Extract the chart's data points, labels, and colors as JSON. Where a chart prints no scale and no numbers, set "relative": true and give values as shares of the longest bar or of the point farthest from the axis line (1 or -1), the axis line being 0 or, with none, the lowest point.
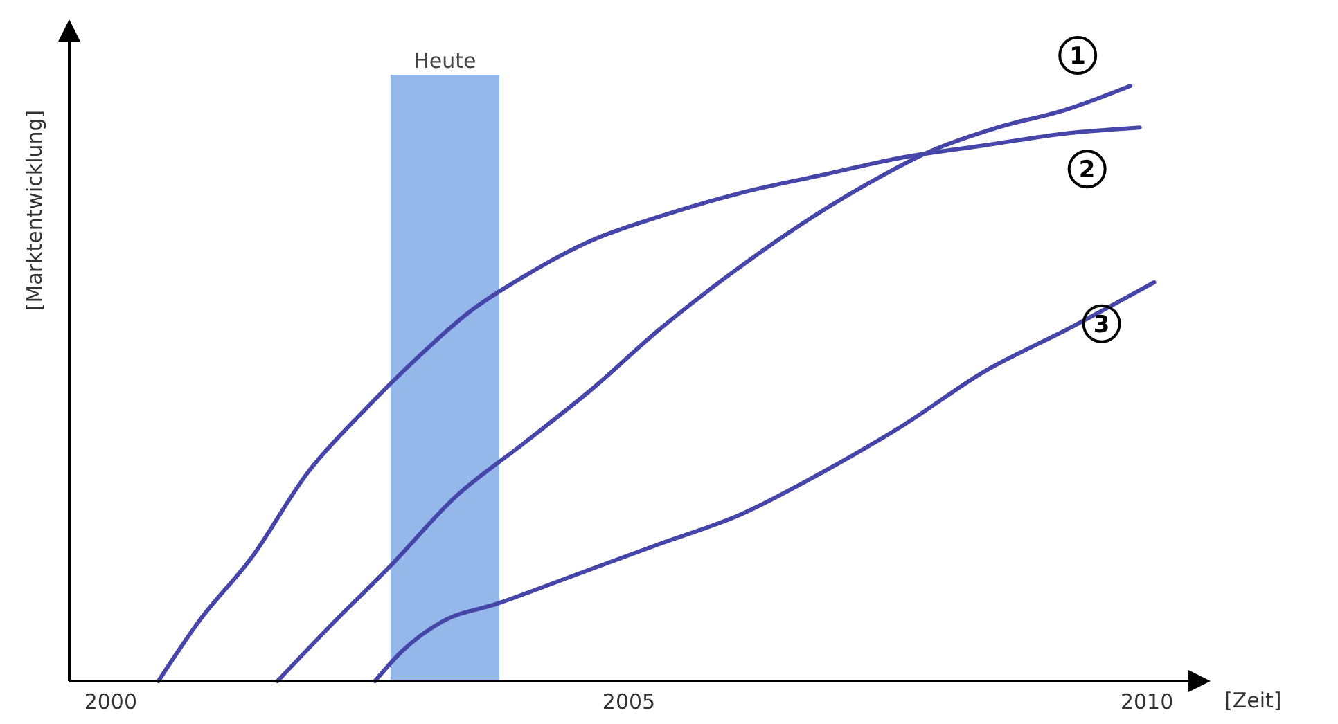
{
  "chart_data": {
    "type": "line",
    "relative": true,
    "xlabel": "[Zeit]",
    "ylabel": "[Marktentwicklung]",
    "xlim": [
      1999.6,
      2010.4
    ],
    "xticks": [
      2000,
      2005,
      2010
    ],
    "grid": false,
    "line_style": "solid",
    "bands": [
      {
        "axis": "x",
        "from": 2002.7,
        "to": 2003.75,
        "label": "Heute",
        "color": "#94b8ea"
      }
    ],
    "series": [
      {
        "name": "1",
        "color": "#4646a8",
        "x": [
          2001.61,
          2002.16,
          2002.68,
          2003.33,
          2003.99,
          2004.64,
          2005.29,
          2005.95,
          2006.6,
          2007.25,
          2007.91,
          2008.56,
          2009.22,
          2009.84
        ],
        "values": [
          0,
          0.1,
          0.19,
          0.31,
          0.4,
          0.49,
          0.59,
          0.68,
          0.76,
          0.83,
          0.89,
          0.93,
          0.96,
          1
        ]
      },
      {
        "name": "2",
        "color": "#4646a8",
        "x": [
          2000.46,
          2000.85,
          2001.37,
          2001.9,
          2002.42,
          2002.94,
          2003.46,
          2003.99,
          2004.64,
          2005.29,
          2006.08,
          2006.86,
          2007.65,
          2008.43,
          2009.22,
          2009.93
        ],
        "values": [
          0,
          0.1,
          0.21,
          0.35,
          0.45,
          0.54,
          0.62,
          0.68,
          0.74,
          0.78,
          0.82,
          0.85,
          0.88,
          0.9,
          0.92,
          0.93
        ]
      },
      {
        "name": "3",
        "color": "#4646a8",
        "x": [
          2002.55,
          2002.81,
          2003.2,
          2003.73,
          2004.51,
          2005.29,
          2006.08,
          2006.86,
          2007.65,
          2008.43,
          2009.22,
          2010.07
        ],
        "values": [
          0,
          0.05,
          0.1,
          0.13,
          0.18,
          0.23,
          0.28,
          0.35,
          0.43,
          0.52,
          0.59,
          0.67
        ]
      }
    ]
  }
}
